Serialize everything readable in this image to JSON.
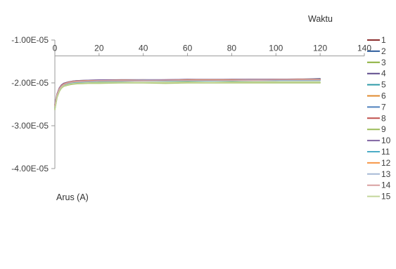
{
  "chart_data": {
    "type": "line",
    "title": "",
    "xlabel": "Waktu",
    "ylabel": "Arus (A)",
    "xlim": [
      0,
      140
    ],
    "ylim": [
      -4e-05,
      -1e-05
    ],
    "x_ticks": [
      0,
      20,
      40,
      60,
      80,
      100,
      120,
      140
    ],
    "x_tick_labels": [
      "0",
      "20",
      "40",
      "60",
      "80",
      "100",
      "120",
      "140"
    ],
    "y_ticks": [
      -1e-05,
      -2e-05,
      -3e-05,
      -4e-05
    ],
    "y_tick_labels": [
      "-1.00E-05",
      "-2.00E-05",
      "-3.00E-05",
      "-4.00E-05"
    ],
    "x_axis_position": "top",
    "grid": false,
    "legend_position": "right",
    "x": [
      0,
      1,
      2,
      3,
      4,
      6,
      8,
      10,
      15,
      20,
      30,
      40,
      50,
      60,
      70,
      80,
      90,
      100,
      110,
      120
    ],
    "series": [
      {
        "name": "1",
        "color": "#8B2E2E",
        "values": [
          -2.6e-05,
          -2.3e-05,
          -2.15e-05,
          -2.08e-05,
          -2.04e-05,
          -2e-05,
          -1.98e-05,
          -1.97e-05,
          -1.96e-05,
          -1.95e-05,
          -1.95e-05,
          -1.94e-05,
          -1.95e-05,
          -1.94e-05,
          -1.94e-05,
          -1.94e-05,
          -1.94e-05,
          -1.94e-05,
          -1.93e-05,
          -1.93e-05
        ]
      },
      {
        "name": "2",
        "color": "#2F5E9E",
        "values": [
          -2.55e-05,
          -2.28e-05,
          -2.14e-05,
          -2.07e-05,
          -2.03e-05,
          -2e-05,
          -1.98e-05,
          -1.96e-05,
          -1.95e-05,
          -1.95e-05,
          -1.94e-05,
          -1.94e-05,
          -1.94e-05,
          -1.93e-05,
          -1.94e-05,
          -1.93e-05,
          -1.93e-05,
          -1.93e-05,
          -1.92e-05,
          -1.9e-05
        ]
      },
      {
        "name": "3",
        "color": "#8BAF3A",
        "values": [
          -2.62e-05,
          -2.34e-05,
          -2.2e-05,
          -2.12e-05,
          -2.08e-05,
          -2.05e-05,
          -2.03e-05,
          -2.02e-05,
          -2.01e-05,
          -2.01e-05,
          -2e-05,
          -2e-05,
          -2.01e-05,
          -2e-05,
          -2e-05,
          -2e-05,
          -2e-05,
          -2e-05,
          -2e-05,
          -2e-05
        ]
      },
      {
        "name": "4",
        "color": "#5E4A8C",
        "values": [
          -2.5e-05,
          -2.26e-05,
          -2.12e-05,
          -2.05e-05,
          -2.01e-05,
          -1.98e-05,
          -1.96e-05,
          -1.95e-05,
          -1.94e-05,
          -1.94e-05,
          -1.93e-05,
          -1.93e-05,
          -1.93e-05,
          -1.92e-05,
          -1.93e-05,
          -1.92e-05,
          -1.92e-05,
          -1.92e-05,
          -1.92e-05,
          -1.91e-05
        ]
      },
      {
        "name": "5",
        "color": "#2E9AA8",
        "values": [
          -2.58e-05,
          -2.31e-05,
          -2.16e-05,
          -2.09e-05,
          -2.05e-05,
          -2.01e-05,
          -1.99e-05,
          -1.98e-05,
          -1.97e-05,
          -1.96e-05,
          -1.96e-05,
          -1.95e-05,
          -1.95e-05,
          -1.95e-05,
          -1.95e-05,
          -1.95e-05,
          -1.94e-05,
          -1.94e-05,
          -1.94e-05,
          -1.94e-05
        ]
      },
      {
        "name": "6",
        "color": "#E08A2E",
        "values": [
          -2.52e-05,
          -2.27e-05,
          -2.13e-05,
          -2.06e-05,
          -2.02e-05,
          -1.99e-05,
          -1.97e-05,
          -1.96e-05,
          -1.95e-05,
          -1.94e-05,
          -1.94e-05,
          -1.93e-05,
          -1.94e-05,
          -1.93e-05,
          -1.93e-05,
          -1.93e-05,
          -1.93e-05,
          -1.92e-05,
          -1.92e-05,
          -1.92e-05
        ]
      },
      {
        "name": "7",
        "color": "#4F81BD",
        "values": [
          -2.56e-05,
          -2.29e-05,
          -2.15e-05,
          -2.08e-05,
          -2.04e-05,
          -2e-05,
          -1.98e-05,
          -1.97e-05,
          -1.96e-05,
          -1.95e-05,
          -1.95e-05,
          -1.94e-05,
          -1.94e-05,
          -1.94e-05,
          -1.94e-05,
          -1.93e-05,
          -1.93e-05,
          -1.93e-05,
          -1.93e-05,
          -1.92e-05
        ]
      },
      {
        "name": "8",
        "color": "#C0504D",
        "values": [
          -2.53e-05,
          -2.27e-05,
          -2.13e-05,
          -2.06e-05,
          -2.02e-05,
          -1.99e-05,
          -1.97e-05,
          -1.96e-05,
          -1.95e-05,
          -1.94e-05,
          -1.94e-05,
          -1.94e-05,
          -1.93e-05,
          -1.93e-05,
          -1.93e-05,
          -1.93e-05,
          -1.92e-05,
          -1.92e-05,
          -1.92e-05,
          -1.92e-05
        ]
      },
      {
        "name": "9",
        "color": "#9BBB59",
        "values": [
          -2.6e-05,
          -2.33e-05,
          -2.19e-05,
          -2.11e-05,
          -2.07e-05,
          -2.04e-05,
          -2.02e-05,
          -2.01e-05,
          -2e-05,
          -1.99e-05,
          -1.99e-05,
          -1.99e-05,
          -1.99e-05,
          -1.98e-05,
          -1.99e-05,
          -1.98e-05,
          -1.98e-05,
          -1.98e-05,
          -1.98e-05,
          -1.98e-05
        ]
      },
      {
        "name": "10",
        "color": "#8064A2",
        "values": [
          -2.51e-05,
          -2.26e-05,
          -2.12e-05,
          -2.05e-05,
          -2.01e-05,
          -1.98e-05,
          -1.96e-05,
          -1.95e-05,
          -1.94e-05,
          -1.93e-05,
          -1.93e-05,
          -1.93e-05,
          -1.93e-05,
          -1.92e-05,
          -1.92e-05,
          -1.92e-05,
          -1.92e-05,
          -1.92e-05,
          -1.91e-05,
          -1.91e-05
        ]
      },
      {
        "name": "11",
        "color": "#4BACC6",
        "values": [
          -2.57e-05,
          -2.3e-05,
          -2.16e-05,
          -2.09e-05,
          -2.05e-05,
          -2.01e-05,
          -1.99e-05,
          -1.98e-05,
          -1.97e-05,
          -1.96e-05,
          -1.95e-05,
          -1.95e-05,
          -1.95e-05,
          -1.95e-05,
          -1.95e-05,
          -1.94e-05,
          -1.94e-05,
          -1.94e-05,
          -1.94e-05,
          -1.94e-05
        ]
      },
      {
        "name": "12",
        "color": "#F79646",
        "values": [
          -2.54e-05,
          -2.28e-05,
          -2.14e-05,
          -2.07e-05,
          -2.03e-05,
          -1.99e-05,
          -1.97e-05,
          -1.96e-05,
          -1.95e-05,
          -1.95e-05,
          -1.94e-05,
          -1.94e-05,
          -1.94e-05,
          -1.93e-05,
          -1.93e-05,
          -1.93e-05,
          -1.93e-05,
          -1.93e-05,
          -1.92e-05,
          -1.92e-05
        ]
      },
      {
        "name": "13",
        "color": "#A6B9D6",
        "values": [
          -2.55e-05,
          -2.29e-05,
          -2.15e-05,
          -2.08e-05,
          -2.04e-05,
          -2e-05,
          -1.98e-05,
          -1.97e-05,
          -1.96e-05,
          -1.95e-05,
          -1.95e-05,
          -1.94e-05,
          -1.94e-05,
          -1.94e-05,
          -1.94e-05,
          -1.94e-05,
          -1.93e-05,
          -1.93e-05,
          -1.93e-05,
          -1.93e-05
        ]
      },
      {
        "name": "14",
        "color": "#D9A0A0",
        "values": [
          -2.56e-05,
          -2.29e-05,
          -2.15e-05,
          -2.08e-05,
          -2.04e-05,
          -2e-05,
          -1.98e-05,
          -1.97e-05,
          -1.96e-05,
          -1.95e-05,
          -1.95e-05,
          -1.95e-05,
          -1.94e-05,
          -1.94e-05,
          -1.94e-05,
          -1.94e-05,
          -1.94e-05,
          -1.93e-05,
          -1.93e-05,
          -1.93e-05
        ]
      },
      {
        "name": "15",
        "color": "#C3D69B",
        "values": [
          -2.61e-05,
          -2.33e-05,
          -2.19e-05,
          -2.11e-05,
          -2.07e-05,
          -2.04e-05,
          -2.02e-05,
          -2.01e-05,
          -2e-05,
          -2e-05,
          -1.99e-05,
          -1.99e-05,
          -2e-05,
          -1.99e-05,
          -1.99e-05,
          -1.99e-05,
          -1.99e-05,
          -1.99e-05,
          -1.99e-05,
          -1.99e-05
        ]
      }
    ]
  }
}
